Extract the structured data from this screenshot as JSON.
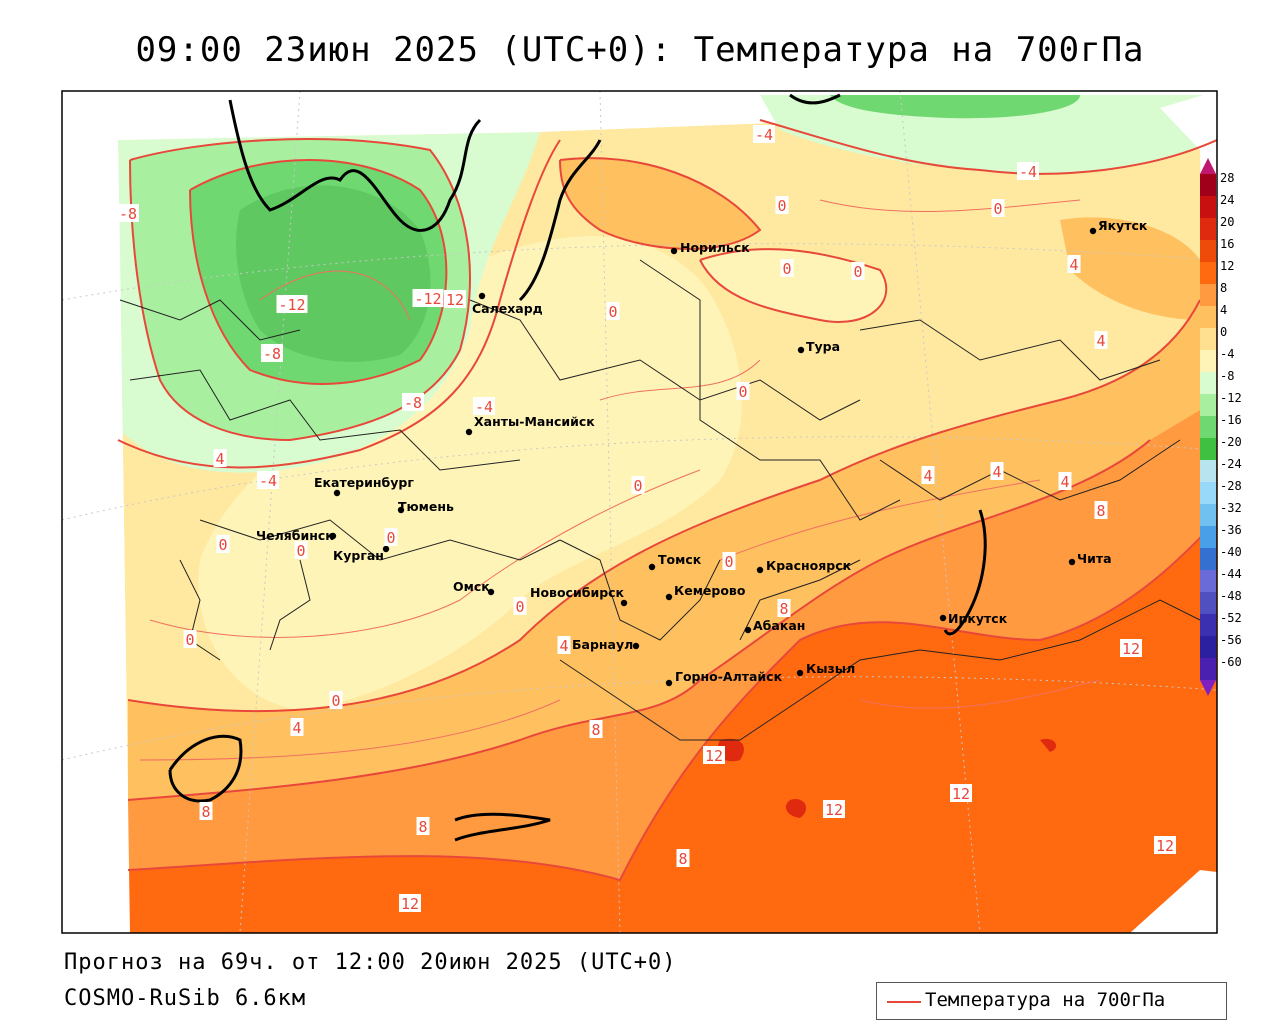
{
  "title": "09:00 23июн 2025 (UTC+0): Температура на 700гПа",
  "forecast_line": "Прогноз на 69ч. от 12:00 20июн 2025 (UTC+0)",
  "model_line": "COSMO-RuSib 6.6км",
  "legend": {
    "label": "Температура на 700гПа",
    "line_color": "#e8483a"
  },
  "colorbar": {
    "ticks": [
      "28",
      "24",
      "20",
      "16",
      "12",
      "8",
      "4",
      "0",
      "-4",
      "-8",
      "-12",
      "-16",
      "-20",
      "-24",
      "-28",
      "-32",
      "-36",
      "-40",
      "-44",
      "-48",
      "-52",
      "-56",
      "-60"
    ],
    "colors": [
      "#a0001a",
      "#c81010",
      "#e02a10",
      "#ee4a0a",
      "#ff6a10",
      "#ff9a40",
      "#ffc060",
      "#ffe090",
      "#fff4b8",
      "#d8fbd0",
      "#a8f0a0",
      "#70d870",
      "#40c040",
      "#b8e4f0",
      "#98d8f8",
      "#70c0f0",
      "#4aa0e8",
      "#3470d0",
      "#6a6ad8",
      "#5050c0",
      "#3a30b0",
      "#2a20a0",
      "#4a20b0"
    ],
    "top_arrow_color": "#c01870",
    "bottom_arrow_color": "#8020c0"
  },
  "cities": [
    {
      "name": "Норильск"
    },
    {
      "name": "Якутск"
    },
    {
      "name": "Салехард"
    },
    {
      "name": "Тура"
    },
    {
      "name": "Ханты-Мансийск"
    },
    {
      "name": "Екатеринбург"
    },
    {
      "name": "Тюмень"
    },
    {
      "name": "Челябинск"
    },
    {
      "name": "Курган"
    },
    {
      "name": "Омск"
    },
    {
      "name": "Новосибирск"
    },
    {
      "name": "Томск"
    },
    {
      "name": "Кемерово"
    },
    {
      "name": "Красноярск"
    },
    {
      "name": "Абакан"
    },
    {
      "name": "Барнаул"
    },
    {
      "name": "Горно-Алтайск"
    },
    {
      "name": "Кызыл"
    },
    {
      "name": "Иркутск"
    },
    {
      "name": "Чита"
    }
  ],
  "isotherm_labels": [
    "-4",
    "-4",
    "0",
    "0",
    "0",
    "0",
    "4",
    "-8",
    "-12",
    "12",
    "0",
    "4",
    "-8",
    "0",
    "-8",
    "-4",
    "0",
    "-4",
    "0",
    "0",
    "4",
    "4",
    "4",
    "8",
    "0",
    "0",
    "0",
    "0",
    "4",
    "8",
    "0",
    "4",
    "8",
    "12",
    "12",
    "12",
    "12",
    "8",
    "8",
    "8",
    "12",
    "12",
    "4",
    "-12"
  ]
}
